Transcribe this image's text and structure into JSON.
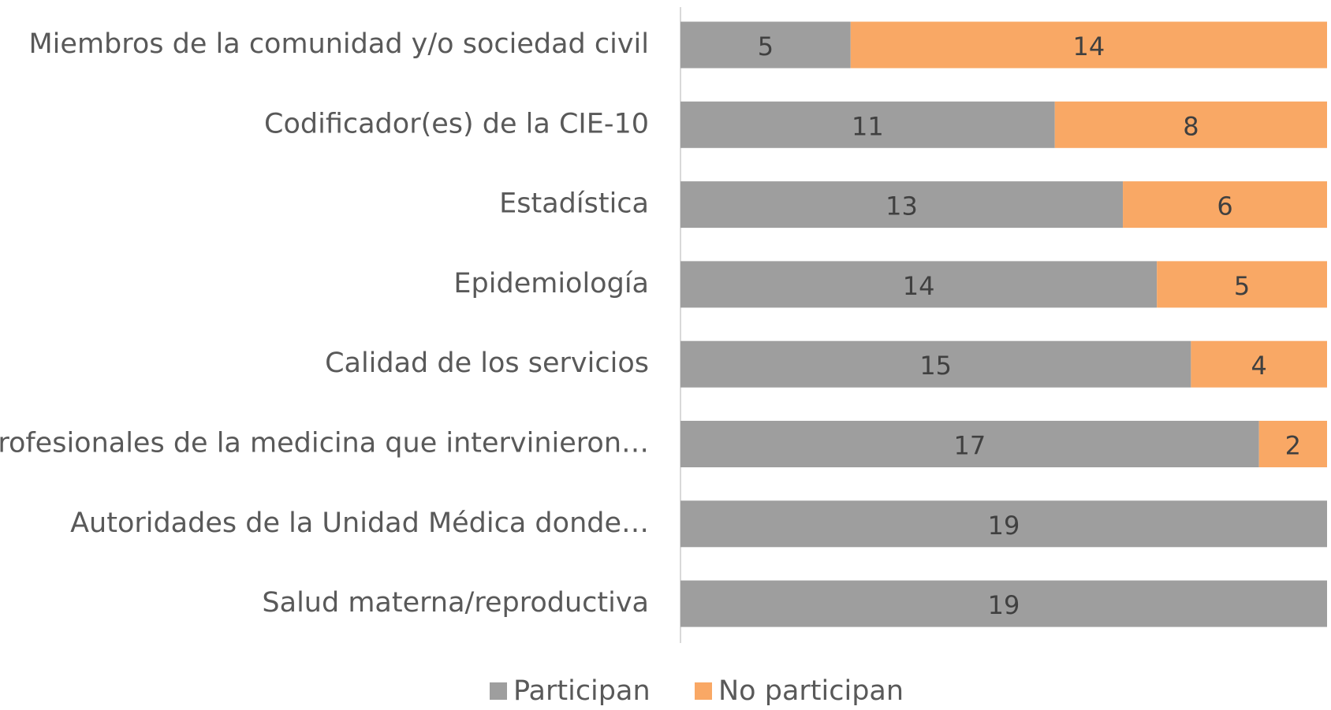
{
  "chart_data": {
    "type": "stacked-bar-horizontal",
    "categories": [
      "Miembros de la comunidad y/o sociedad civil",
      "Codificador(es) de la CIE-10",
      "Estadística",
      "Epidemiología",
      "Calidad de los servicios",
      "Profesionales de la medicina que intervinieron…",
      "Autoridades de la Unidad Médica donde…",
      "Salud materna/reproductiva"
    ],
    "series": [
      {
        "name": "Participan",
        "color": "#9e9e9e",
        "values": [
          5,
          11,
          13,
          14,
          15,
          17,
          19,
          19
        ]
      },
      {
        "name": "No participan",
        "color": "#f9a865",
        "values": [
          14,
          8,
          6,
          5,
          4,
          2,
          null,
          null
        ]
      }
    ],
    "legend": "bottom"
  }
}
